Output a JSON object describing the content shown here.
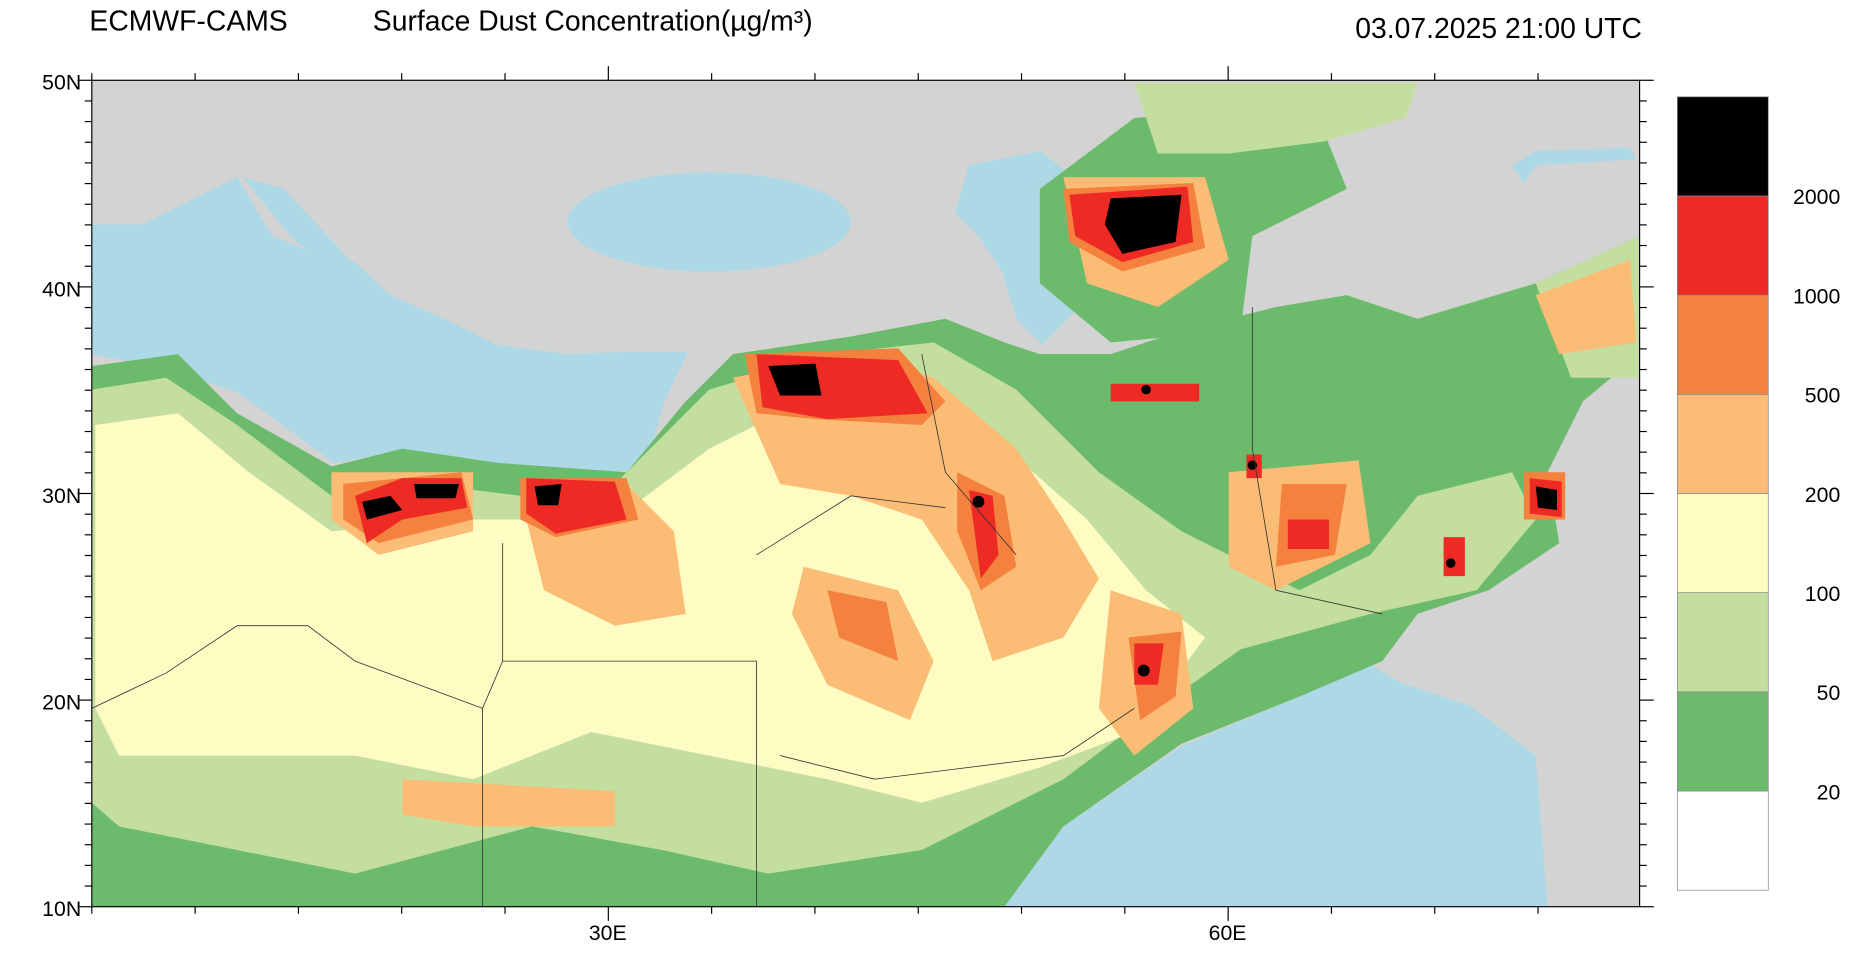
{
  "header": {
    "source": "ECMWF-CAMS",
    "title": "Surface Dust Concentration(µg/m³)",
    "time": "03.07.2025 21:00 UTC"
  },
  "axes": {
    "lat_labels": [
      "50N",
      "40N",
      "30N",
      "20N",
      "10N"
    ],
    "lon_labels": [
      "30E",
      "60E"
    ]
  },
  "colorbar": {
    "levels": [
      20,
      50,
      100,
      200,
      500,
      1000,
      2000
    ],
    "colors": [
      "#ffffff",
      "#6cbb6c",
      "#c4dea0",
      "#fefcc2",
      "#fbbc76",
      "#f5813f",
      "#ee2a24",
      "#000000"
    ]
  }
}
